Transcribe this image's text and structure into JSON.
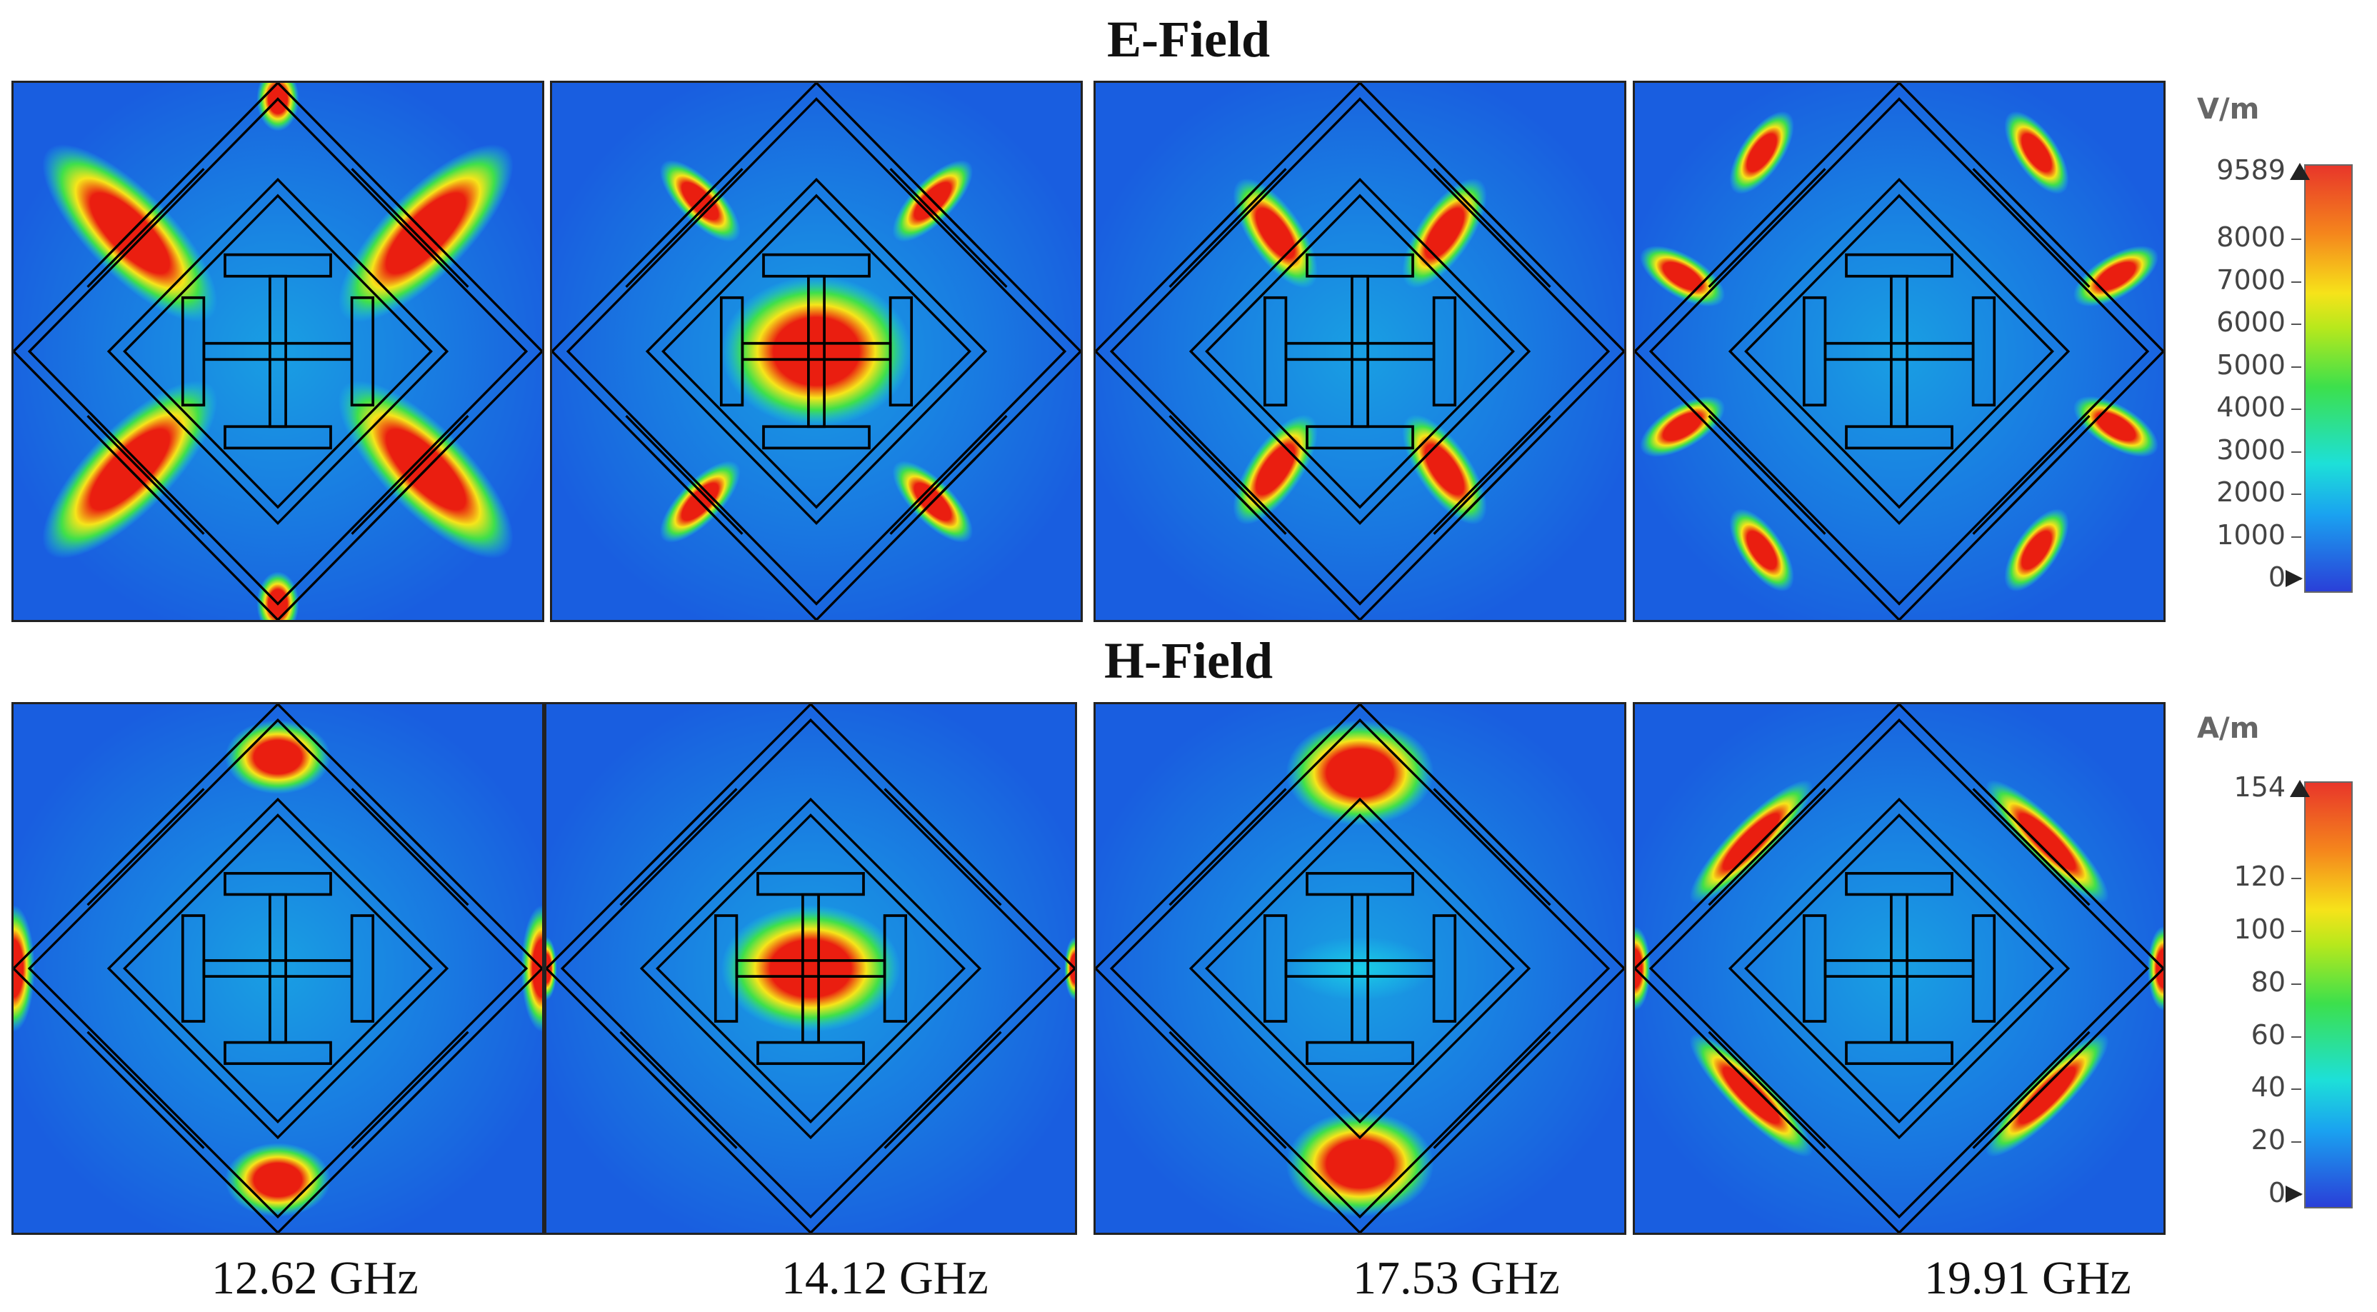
{
  "figure": {
    "rows": [
      {
        "title": "E-Field"
      },
      {
        "title": "H-Field"
      }
    ],
    "frequencies": [
      "12.62 GHz",
      "14.12 GHz",
      "17.53 GHz",
      "19.91 GHz"
    ]
  },
  "legends": [
    {
      "unit": "V/m",
      "max_label": "9589",
      "ticks": [
        "8000",
        "7000",
        "6000",
        "5000",
        "4000",
        "3000",
        "2000",
        "1000",
        "0"
      ],
      "tick_values": [
        8000,
        7000,
        6000,
        5000,
        4000,
        3000,
        2000,
        1000,
        0
      ],
      "max": 9589
    },
    {
      "unit": "A/m",
      "max_label": "154",
      "ticks": [
        "120",
        "100",
        "80",
        "60",
        "40",
        "20",
        "0"
      ],
      "tick_values": [
        120,
        100,
        80,
        60,
        40,
        20,
        0
      ],
      "max": 154
    }
  ],
  "colors": {
    "low": "#1c3fd6",
    "mid_low": "#1ad4e6",
    "mid": "#3fe04a",
    "mid_high": "#f6e51a",
    "high": "#ea1e10",
    "background": "#1a5ee0",
    "structure": "#000000"
  }
}
